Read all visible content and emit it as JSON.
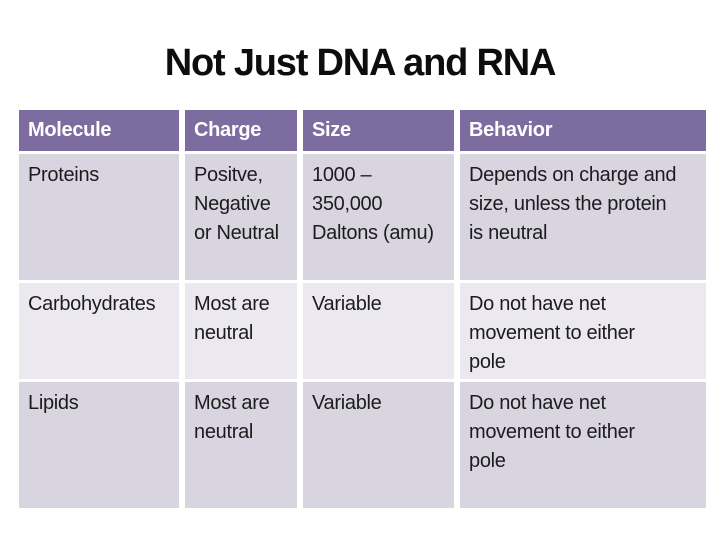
{
  "slide": {
    "title": "Not Just DNA and RNA",
    "colors": {
      "background": "#FFFFFF",
      "header_bg": "#7D6CA0",
      "header_text": "#FFFFFF",
      "row_band_dark": "#D8D4E0",
      "row_band_light": "#EBE9EF",
      "body_text": "#1C1C1C",
      "title_text": "#0D0D0D"
    }
  },
  "table": {
    "headers": [
      "Molecule",
      "Charge",
      "Size",
      "Behavior"
    ],
    "rows": [
      {
        "cells": [
          "Proteins",
          "Positve,\nNegative\nor Neutral",
          "1000 –\n350,000\nDaltons (amu)",
          "Depends on charge and\nsize, unless the protein\nis neutral"
        ]
      },
      {
        "cells": [
          "Carbohydrates",
          "Most are\nneutral",
          "Variable",
          "Do not have net\nmovement to either\npole"
        ]
      },
      {
        "cells": [
          "Lipids",
          "Most are\nneutral",
          "Variable",
          "Do not have net\nmovement to either\npole"
        ]
      }
    ]
  }
}
